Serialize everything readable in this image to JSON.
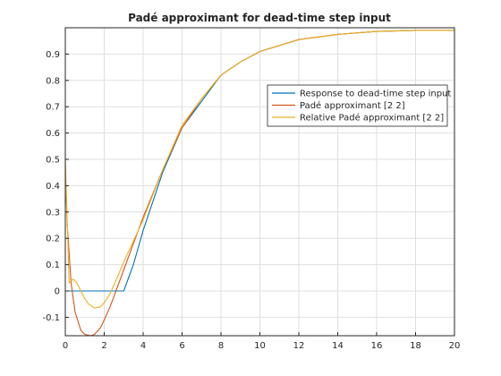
{
  "figure": {
    "background": "#ffffff"
  },
  "chart_data": {
    "type": "line",
    "title": "Padé approximant for dead-time step input",
    "xlabel": "",
    "ylabel": "",
    "xlim": [
      0,
      20
    ],
    "ylim": [
      -0.17,
      1.0
    ],
    "xticks": [
      0,
      2,
      4,
      6,
      8,
      10,
      12,
      14,
      16,
      18,
      20
    ],
    "yticks": [
      -0.1,
      0,
      0.1,
      0.2,
      0.3,
      0.4,
      0.5,
      0.6,
      0.7,
      0.8,
      0.9
    ],
    "grid": true,
    "legend": {
      "placement": "top-right"
    },
    "series": [
      {
        "name": "Response to dead-time step input",
        "color": "#0072bd",
        "x": [
          0,
          2.9,
          3.0,
          3.5,
          4.0,
          5.0,
          6.0,
          7.0,
          8.0,
          9.0,
          10.0,
          12.0,
          14.0,
          16.0,
          18.0,
          20.0
        ],
        "y": [
          0,
          0,
          0,
          0.1,
          0.23,
          0.45,
          0.62,
          0.72,
          0.82,
          0.87,
          0.91,
          0.955,
          0.975,
          0.986,
          0.99,
          0.99
        ]
      },
      {
        "name": "Padé approximant [2 2]",
        "color": "#d95319",
        "x": [
          0,
          0.1,
          0.3,
          0.5,
          0.8,
          1.0,
          1.3,
          1.5,
          1.8,
          2.0,
          2.3,
          2.6,
          3.0,
          3.5,
          4.0,
          5.0,
          6.0,
          7.0,
          8.0,
          9.0,
          10.0,
          12.0,
          14.0,
          16.0,
          18.0,
          20.0
        ],
        "y": [
          0.45,
          0.25,
          0.03,
          -0.08,
          -0.15,
          -0.165,
          -0.17,
          -0.165,
          -0.14,
          -0.11,
          -0.06,
          0.0,
          0.08,
          0.18,
          0.28,
          0.46,
          0.62,
          0.73,
          0.82,
          0.87,
          0.91,
          0.955,
          0.975,
          0.986,
          0.99,
          0.99
        ]
      },
      {
        "name": "Relative Padé approximant [2 2]",
        "color": "#edb120",
        "x": [
          0,
          0.2,
          0.4,
          0.6,
          0.8,
          1.0,
          1.2,
          1.5,
          1.8,
          2.0,
          2.3,
          2.6,
          3.0,
          3.5,
          4.0,
          5.0,
          6.0,
          7.0,
          8.0,
          9.0,
          10.0,
          12.0,
          14.0,
          16.0,
          18.0,
          20.0
        ],
        "y": [
          0.5,
          0.03,
          0.045,
          0.03,
          0.0,
          -0.03,
          -0.05,
          -0.065,
          -0.06,
          -0.045,
          -0.01,
          0.04,
          0.11,
          0.19,
          0.27,
          0.46,
          0.63,
          0.73,
          0.82,
          0.87,
          0.91,
          0.955,
          0.975,
          0.986,
          0.99,
          0.99
        ]
      }
    ]
  }
}
